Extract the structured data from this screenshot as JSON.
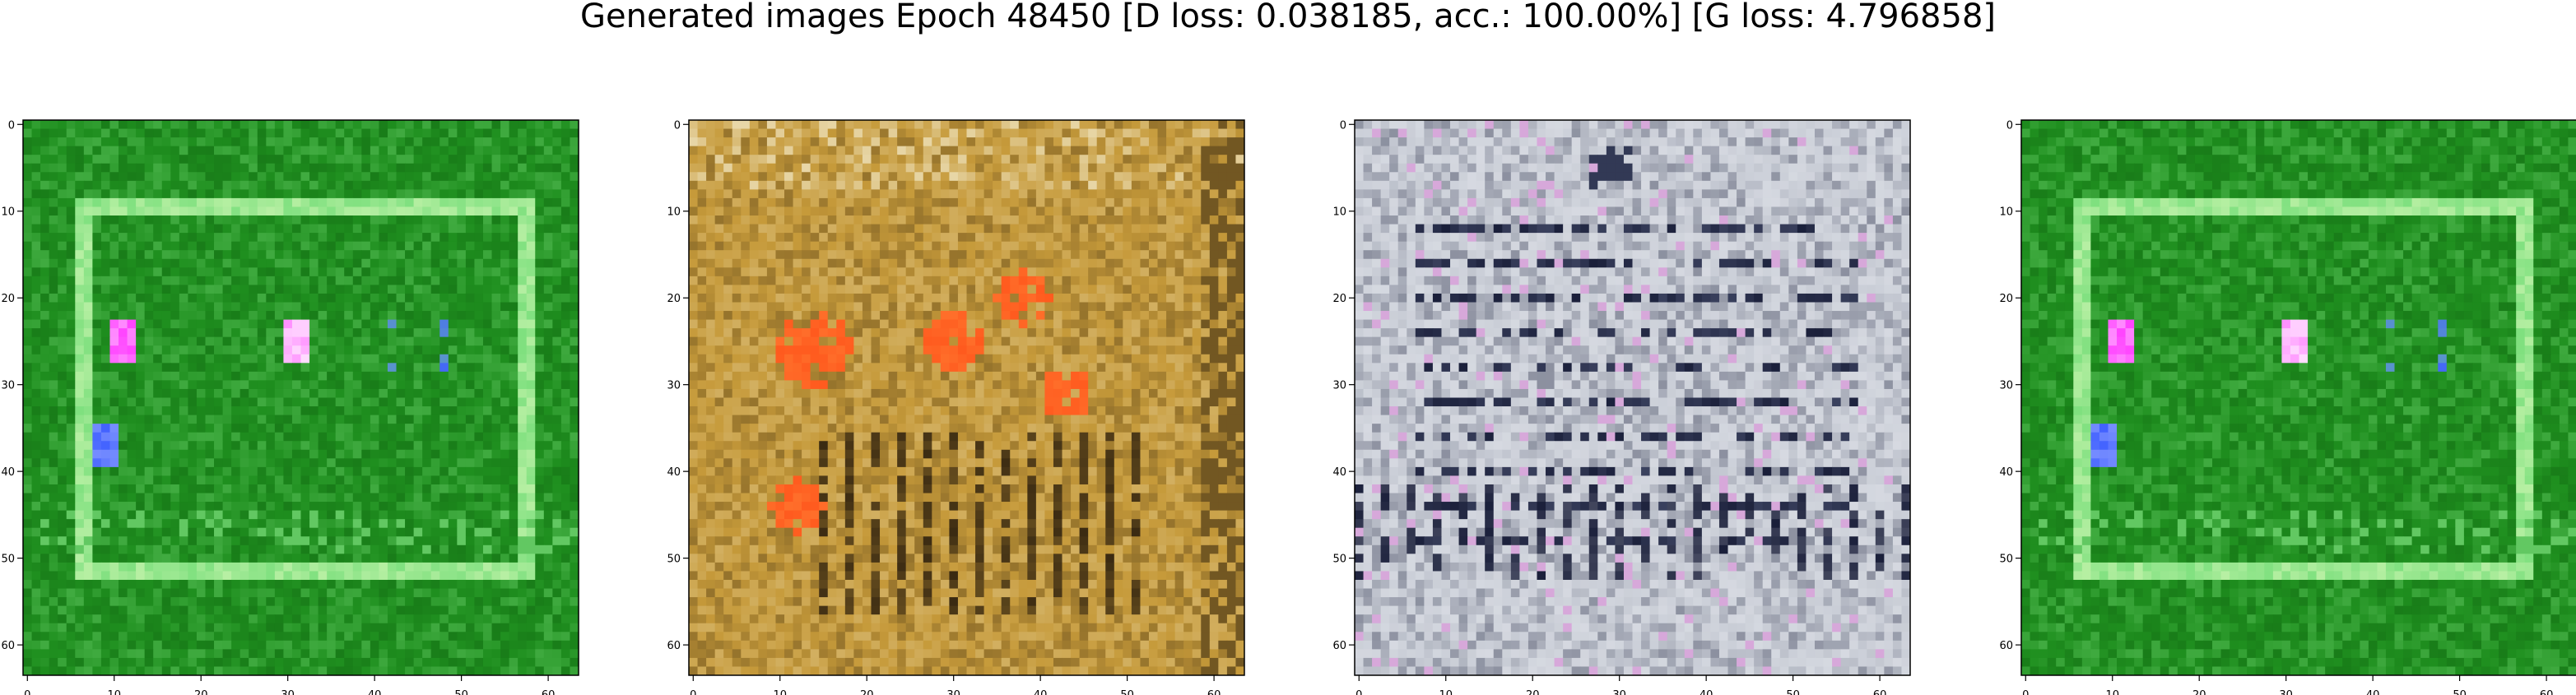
{
  "suptitle": "Generated images Epoch 48450 [D loss: 0.038185, acc.: 100.00%] [G loss: 4.796858]",
  "axes": {
    "x_ticks": [
      "0",
      "10",
      "20",
      "30",
      "40",
      "50",
      "60"
    ],
    "y_ticks": [
      "0",
      "10",
      "20",
      "30",
      "40",
      "50",
      "60"
    ],
    "image_size": 64
  },
  "panels": [
    {
      "name": "green-field",
      "palette": {
        "base": "#1f8f1f",
        "dark": "#0d5a0d",
        "light": "#7fe07f",
        "accent": "#ff40ff",
        "accent2": "#4060ff"
      },
      "description_kind": "green"
    },
    {
      "name": "ochre-field",
      "palette": {
        "base": "#c69a3a",
        "dark": "#3a2a12",
        "light": "#e8d7a8",
        "accent": "#ff5a1e",
        "accent2": "#8a6a2a"
      },
      "description_kind": "ochre"
    },
    {
      "name": "grey-field",
      "palette": {
        "base": "#c9cdd6",
        "dark": "#1a1f3a",
        "light": "#eef0f5",
        "accent": "#9aa2b8",
        "accent2": "#6b7494"
      },
      "description_kind": "grey"
    },
    {
      "name": "green-field-duplicate",
      "palette": {
        "base": "#1f8f1f",
        "dark": "#0d5a0d",
        "light": "#7fe07f",
        "accent": "#ff40ff",
        "accent2": "#4060ff"
      },
      "description_kind": "green"
    }
  ]
}
